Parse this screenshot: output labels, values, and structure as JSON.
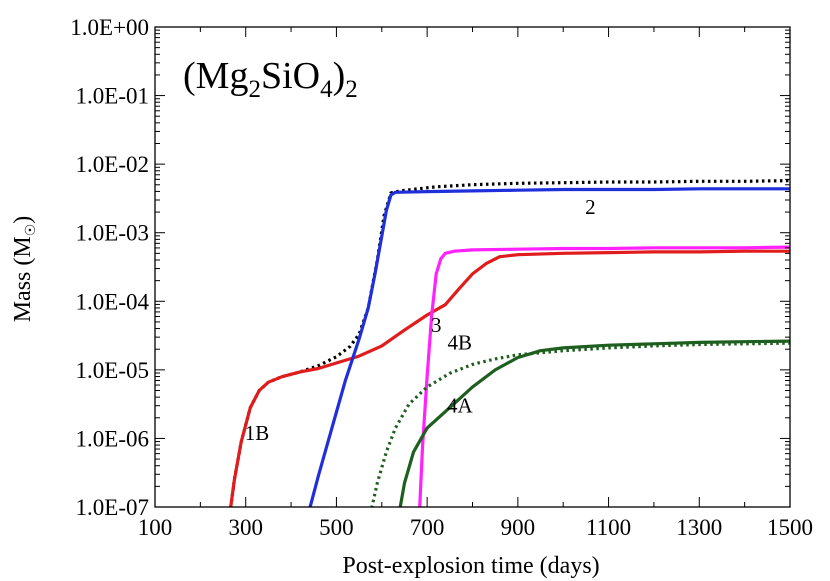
{
  "chart_data": {
    "type": "line",
    "title": "(Mg2SiO4)2",
    "title_parts": {
      "base": "(Mg",
      "sub1": "2",
      "mid": "SiO",
      "sub2": "4",
      "close": ")",
      "sub3": "2"
    },
    "xlabel": "Post-explosion time (days)",
    "ylabel": {
      "main": "Mass (M",
      "sub": "☉",
      "close": ")"
    },
    "xlim": [
      100,
      1500
    ],
    "ylim_log10": [
      -7,
      0
    ],
    "x_ticks": [
      100,
      300,
      500,
      700,
      900,
      1100,
      1300,
      1500
    ],
    "x_tick_labels": [
      "100",
      "300",
      "500",
      "700",
      "900",
      "1100",
      "1300",
      "1500"
    ],
    "y_ticks_log10": [
      0,
      -1,
      -2,
      -3,
      -4,
      -5,
      -6,
      -7
    ],
    "y_tick_labels": [
      "1.0E+00",
      "1.0E-01",
      "1.0E-02",
      "1.0E-03",
      "1.0E-04",
      "1.0E-05",
      "1.0E-06",
      "1.0E-07"
    ],
    "grid": false,
    "series": [
      {
        "name": "1B-dotted",
        "color": "#000000",
        "style": "dotted",
        "x": [
          265,
          275,
          290,
          310,
          330,
          350,
          380,
          420,
          460,
          500,
          530,
          550,
          570,
          590,
          605,
          620,
          640,
          680,
          720,
          800,
          900,
          1000,
          1100,
          1200,
          1300,
          1400,
          1500
        ],
        "log10y": [
          -7.1,
          -6.6,
          -6.05,
          -5.55,
          -5.3,
          -5.18,
          -5.1,
          -5.03,
          -4.94,
          -4.81,
          -4.66,
          -4.48,
          -4.1,
          -3.4,
          -2.75,
          -2.42,
          -2.39,
          -2.36,
          -2.33,
          -2.3,
          -2.28,
          -2.27,
          -2.26,
          -2.26,
          -2.25,
          -2.25,
          -2.24
        ]
      },
      {
        "name": "1B",
        "color": "#e01c1c",
        "style": "solid",
        "x": [
          265,
          275,
          290,
          310,
          330,
          350,
          380,
          420,
          460,
          500,
          550,
          600,
          650,
          700,
          740,
          770,
          800,
          830,
          860,
          900,
          1000,
          1100,
          1200,
          1300,
          1400,
          1500
        ],
        "log10y": [
          -7.1,
          -6.6,
          -6.05,
          -5.55,
          -5.3,
          -5.18,
          -5.1,
          -5.03,
          -4.98,
          -4.9,
          -4.8,
          -4.65,
          -4.42,
          -4.2,
          -4.05,
          -3.82,
          -3.6,
          -3.45,
          -3.35,
          -3.32,
          -3.3,
          -3.29,
          -3.28,
          -3.28,
          -3.27,
          -3.27
        ]
      },
      {
        "name": "2",
        "color": "#1f2fdc",
        "style": "solid",
        "x": [
          438,
          460,
          490,
          520,
          550,
          570,
          585,
          600,
          610,
          620,
          630,
          700,
          800,
          900,
          1000,
          1100,
          1200,
          1300,
          1400,
          1500
        ],
        "log10y": [
          -7.1,
          -6.55,
          -5.85,
          -5.15,
          -4.55,
          -4.1,
          -3.6,
          -3.05,
          -2.68,
          -2.45,
          -2.41,
          -2.4,
          -2.39,
          -2.38,
          -2.37,
          -2.37,
          -2.37,
          -2.36,
          -2.36,
          -2.36
        ]
      },
      {
        "name": "3",
        "color": "#ff22ff",
        "style": "solid",
        "x": [
          683,
          690,
          700,
          710,
          720,
          730,
          740,
          760,
          800,
          900,
          1000,
          1100,
          1200,
          1300,
          1400,
          1500
        ],
        "log10y": [
          -7.1,
          -6.1,
          -5.1,
          -4.2,
          -3.6,
          -3.38,
          -3.3,
          -3.27,
          -3.25,
          -3.24,
          -3.23,
          -3.23,
          -3.22,
          -3.22,
          -3.22,
          -3.21
        ]
      },
      {
        "name": "4B",
        "color": "#1e5e1e",
        "style": "dotted",
        "x": [
          575,
          590,
          610,
          630,
          660,
          700,
          750,
          800,
          850,
          900,
          1000,
          1100,
          1200,
          1300,
          1400,
          1500
        ],
        "log10y": [
          -7.1,
          -6.65,
          -6.2,
          -5.85,
          -5.5,
          -5.25,
          -5.05,
          -4.92,
          -4.84,
          -4.78,
          -4.72,
          -4.68,
          -4.65,
          -4.63,
          -4.62,
          -4.61
        ]
      },
      {
        "name": "4A",
        "color": "#1e5e1e",
        "style": "solid",
        "x": [
          638,
          650,
          670,
          700,
          750,
          800,
          850,
          900,
          950,
          1000,
          1100,
          1200,
          1300,
          1400,
          1500
        ],
        "log10y": [
          -7.1,
          -6.65,
          -6.2,
          -5.85,
          -5.55,
          -5.25,
          -5.0,
          -4.82,
          -4.72,
          -4.68,
          -4.64,
          -4.62,
          -4.6,
          -4.59,
          -4.58
        ]
      }
    ],
    "annotations": [
      {
        "text": "1B",
        "x": 325,
        "log10y": -6.02
      },
      {
        "text": "2",
        "x": 1060,
        "log10y": -2.73
      },
      {
        "text": "3",
        "x": 720,
        "log10y": -4.45
      },
      {
        "text": "4B",
        "x": 772,
        "log10y": -4.7
      },
      {
        "text": "4A",
        "x": 772,
        "log10y": -5.62
      }
    ]
  }
}
